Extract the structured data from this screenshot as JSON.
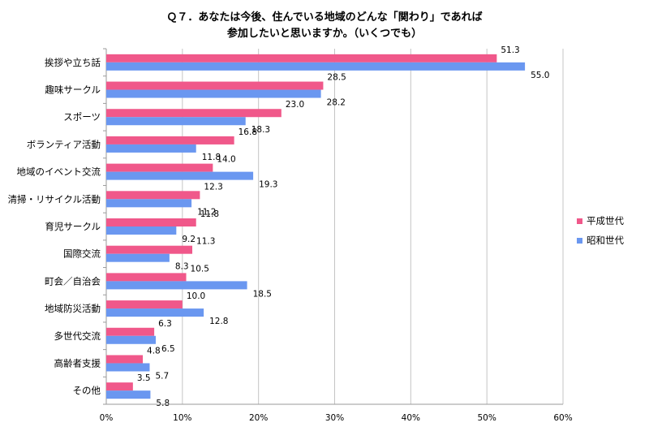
{
  "chart_data": {
    "type": "bar",
    "orientation": "horizontal",
    "title_lines": [
      "Ｑ７．あなたは今後、住んでいる地域のどんな「関わり」であれば",
      "参加したいと思いますか。（いくつでも）"
    ],
    "categories": [
      "挨拶や立ち話",
      "趣味サークル",
      "スポーツ",
      "ボランティア活動",
      "地域のイベント交流",
      "清掃・リサイクル活動",
      "育児サークル",
      "国際交流",
      "町会／自治会",
      "地域防災活動",
      "多世代交流",
      "高齢者支援",
      "その他"
    ],
    "series": [
      {
        "name": "平成世代",
        "color": "#f0588a",
        "values": [
          51.3,
          28.5,
          23.0,
          16.8,
          14.0,
          12.3,
          11.8,
          11.3,
          10.5,
          10.0,
          6.3,
          4.8,
          3.5
        ],
        "labels": [
          "51.3",
          "28.5",
          "23.0",
          "16.8",
          "14.0",
          "12.3",
          "11.8",
          "11.3",
          "10.5",
          "10.0",
          "6.3",
          "4.8",
          "3.5"
        ]
      },
      {
        "name": "昭和世代",
        "color": "#6a97f0",
        "values": [
          55.0,
          28.2,
          18.3,
          11.8,
          19.3,
          11.2,
          9.2,
          8.3,
          18.5,
          12.8,
          6.5,
          5.7,
          5.8
        ],
        "labels": [
          "55.0",
          "28.2",
          "18.3",
          "11.8",
          "19.3",
          "11.2",
          "9.2",
          "8.3",
          "18.5",
          "12.8",
          "6.5",
          "5.7",
          "5.8"
        ]
      }
    ],
    "xlim": [
      0,
      60
    ],
    "x_ticks": [
      {
        "value": 0,
        "label": "0%"
      },
      {
        "value": 10,
        "label": "10%"
      },
      {
        "value": 20,
        "label": "20%"
      },
      {
        "value": 30,
        "label": "30%"
      },
      {
        "value": 40,
        "label": "40%"
      },
      {
        "value": 50,
        "label": "50%"
      },
      {
        "value": 60,
        "label": "60%"
      }
    ],
    "grid": true,
    "legend_position": "right"
  }
}
